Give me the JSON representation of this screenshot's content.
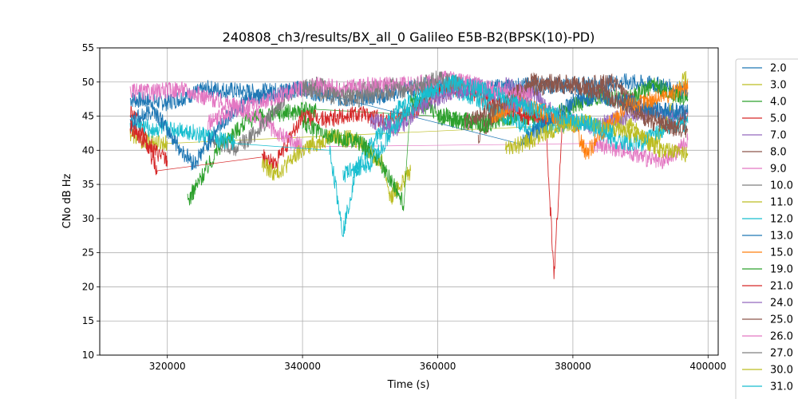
{
  "chart_data": {
    "type": "line",
    "title": "240808_ch3/results/BX_all_0 Galileo E5B-B2(BPSK(10)-PD)",
    "xlabel": "Time (s)",
    "ylabel": "CNo dB Hz",
    "xlim": [
      310000,
      401500
    ],
    "ylim": [
      10,
      55
    ],
    "grid": true,
    "legend_position": "right, outside plot",
    "x_ticks": [
      320000,
      340000,
      360000,
      380000,
      400000
    ],
    "x_tick_labels": [
      "320000",
      "340000",
      "360000",
      "380000",
      "400000"
    ],
    "y_ticks": [
      10,
      15,
      20,
      25,
      30,
      35,
      40,
      45,
      50,
      55
    ],
    "y_tick_labels": [
      "10",
      "15",
      "20",
      "25",
      "30",
      "35",
      "40",
      "45",
      "50",
      "55"
    ],
    "series": [
      {
        "name": "2.0",
        "color": "#1f77b4",
        "segments": [
          [
            [
              314500,
              47.5
            ],
            [
              320000,
              47.0
            ],
            [
              326000,
              49.0
            ],
            [
              333000,
              48.5
            ],
            [
              340000,
              49.0
            ],
            [
              346000,
              47.5
            ],
            [
              352000,
              48.0
            ],
            [
              358000,
              49.5
            ],
            [
              366000,
              49.0
            ],
            [
              374000,
              49.5
            ],
            [
              382000,
              49.5
            ],
            [
              388000,
              50.0
            ],
            [
              393000,
              49.5
            ],
            [
              397000,
              48.5
            ]
          ]
        ]
      },
      {
        "name": "3.0",
        "color": "#bcbd22",
        "segments": [
          [
            [
              314500,
              42.5
            ],
            [
              316000,
              41.5
            ],
            [
              320000,
              41.0
            ]
          ],
          [
            [
              386000,
              44.0
            ],
            [
              389000,
              43.5
            ],
            [
              392000,
              40.5
            ],
            [
              394000,
              44.5
            ],
            [
              396000,
              50.0
            ],
            [
              397000,
              50.5
            ]
          ]
        ]
      },
      {
        "name": "4.0",
        "color": "#2ca02c",
        "segments": [
          [
            [
              323000,
              32.5
            ],
            [
              325000,
              36.0
            ],
            [
              328000,
              41.0
            ],
            [
              332000,
              44.5
            ],
            [
              337000,
              45.5
            ],
            [
              342000,
              46.0
            ]
          ],
          [
            [
              360000,
              45.0
            ],
            [
              366000,
              44.0
            ],
            [
              372000,
              45.0
            ],
            [
              376000,
              44.5
            ],
            [
              380000,
              46.5
            ],
            [
              384000,
              48.0
            ],
            [
              388000,
              47.5
            ],
            [
              392000,
              49.5
            ],
            [
              397000,
              47.5
            ]
          ]
        ]
      },
      {
        "name": "5.0",
        "color": "#d62728",
        "segments": [
          [
            [
              314500,
              46.0
            ],
            [
              316000,
              43.5
            ],
            [
              318500,
              37.0
            ]
          ],
          [
            [
              334000,
              39.0
            ],
            [
              336000,
              38.0
            ],
            [
              340000,
              45.0
            ],
            [
              344000,
              44.5
            ],
            [
              348000,
              45.5
            ],
            [
              352000,
              44.5
            ],
            [
              356000,
              45.5
            ],
            [
              360000,
              48.5
            ],
            [
              364000,
              49.0
            ],
            [
              368000,
              47.0
            ],
            [
              372000,
              45.5
            ],
            [
              376000,
              44.0
            ],
            [
              377200,
              21.5
            ],
            [
              378500,
              44.5
            ]
          ]
        ]
      },
      {
        "name": "7.0",
        "color": "#9467bd",
        "segments": [
          [
            [
              370000,
              49.5
            ],
            [
              374000,
              48.5
            ],
            [
              378000,
              44.5
            ],
            [
              383000,
              43.5
            ],
            [
              388000,
              45.0
            ],
            [
              392000,
              46.0
            ],
            [
              395000,
              44.5
            ],
            [
              397000,
              45.5
            ]
          ]
        ]
      },
      {
        "name": "8.0",
        "color": "#8c564b",
        "segments": [
          [
            [
              366000,
              42.0
            ],
            [
              370000,
              47.0
            ],
            [
              374000,
              50.0
            ],
            [
              378000,
              50.0
            ],
            [
              382000,
              49.5
            ],
            [
              386000,
              50.0
            ],
            [
              388000,
              48.0
            ],
            [
              392000,
              45.0
            ],
            [
              395000,
              43.0
            ],
            [
              397000,
              45.5
            ]
          ]
        ]
      },
      {
        "name": "9.0",
        "color": "#e377c2",
        "segments": [
          [
            [
              314500,
              48.5
            ],
            [
              318000,
              48.5
            ],
            [
              322000,
              49.0
            ],
            [
              325000,
              48.0
            ],
            [
              330000,
              46.5
            ],
            [
              334000,
              44.5
            ],
            [
              337000,
              42.0
            ],
            [
              340000,
              40.5
            ]
          ],
          [
            [
              383000,
              41.0
            ],
            [
              388000,
              40.0
            ],
            [
              393000,
              38.0
            ],
            [
              395000,
              39.5
            ],
            [
              397000,
              41.5
            ]
          ]
        ]
      },
      {
        "name": "10.0",
        "color": "#7f7f7f",
        "segments": [
          [
            [
              326000,
              42.0
            ],
            [
              330000,
              40.0
            ],
            [
              334000,
              43.5
            ],
            [
              338000,
              48.5
            ],
            [
              342000,
              49.5
            ],
            [
              346000,
              48.5
            ],
            [
              350000,
              49.0
            ],
            [
              354000,
              49.5
            ]
          ]
        ]
      },
      {
        "name": "11.0",
        "color": "#bcbd22",
        "segments": [
          [
            [
              334000,
              38.0
            ],
            [
              336000,
              36.5
            ],
            [
              340000,
              40.0
            ],
            [
              344000,
              42.0
            ],
            [
              348000,
              41.5
            ],
            [
              352000,
              38.0
            ],
            [
              353000,
              33.0
            ],
            [
              356000,
              37.0
            ]
          ]
        ]
      },
      {
        "name": "12.0",
        "color": "#17becf",
        "segments": [
          [
            [
              314500,
              44.0
            ],
            [
              318000,
              43.0
            ],
            [
              322000,
              43.0
            ],
            [
              326000,
              42.0
            ],
            [
              330000,
              41.0
            ]
          ],
          [
            [
              344000,
              40.0
            ],
            [
              346000,
              28.0
            ],
            [
              348000,
              37.5
            ],
            [
              350000,
              40.5
            ],
            [
              354000,
              46.0
            ],
            [
              358000,
              48.5
            ],
            [
              362000,
              49.0
            ],
            [
              366000,
              47.5
            ],
            [
              370000,
              45.0
            ],
            [
              374000,
              43.0
            ],
            [
              378000,
              44.0
            ],
            [
              382000,
              44.0
            ],
            [
              386000,
              41.5
            ],
            [
              390000,
              41.0
            ],
            [
              394000,
              43.5
            ],
            [
              397000,
              44.0
            ]
          ]
        ]
      },
      {
        "name": "13.0",
        "color": "#1f77b4",
        "segments": [
          [
            [
              314500,
              44.0
            ],
            [
              318000,
              46.0
            ],
            [
              322000,
              40.0
            ],
            [
              324000,
              38.0
            ],
            [
              328000,
              44.0
            ],
            [
              332000,
              47.5
            ],
            [
              336000,
              48.5
            ],
            [
              340000,
              49.0
            ]
          ],
          [
            [
              372000,
              41.0
            ],
            [
              376000,
              44.0
            ],
            [
              380000,
              47.0
            ],
            [
              384000,
              48.0
            ],
            [
              388000,
              47.0
            ],
            [
              392000,
              46.0
            ],
            [
              397000,
              45.5
            ]
          ]
        ]
      },
      {
        "name": "15.0",
        "color": "#ff7f0e",
        "segments": [
          [
            [
              368000,
              45.0
            ],
            [
              372000,
              47.0
            ],
            [
              376000,
              45.5
            ],
            [
              380000,
              44.0
            ],
            [
              382000,
              39.5
            ],
            [
              385000,
              43.5
            ],
            [
              388000,
              46.5
            ],
            [
              392000,
              47.5
            ],
            [
              397000,
              49.0
            ]
          ]
        ]
      },
      {
        "name": "19.0",
        "color": "#2ca02c",
        "segments": [
          [
            [
              340000,
              44.0
            ],
            [
              344000,
              42.0
            ],
            [
              348000,
              41.5
            ],
            [
              351000,
              39.0
            ],
            [
              353500,
              35.0
            ],
            [
              355000,
              32.0
            ]
          ],
          [
            [
              356000,
              47.5
            ],
            [
              360000,
              45.5
            ],
            [
              364000,
              44.0
            ],
            [
              368000,
              43.5
            ]
          ]
        ]
      },
      {
        "name": "21.0",
        "color": "#d62728",
        "segments": [
          [
            [
              314500,
              43.5
            ],
            [
              316000,
              42.0
            ],
            [
              318000,
              40.0
            ],
            [
              320000,
              38.5
            ]
          ]
        ]
      },
      {
        "name": "24.0",
        "color": "#9467bd",
        "segments": [
          [
            [
              350000,
              44.5
            ],
            [
              354000,
              43.0
            ],
            [
              358000,
              46.5
            ],
            [
              362000,
              48.5
            ],
            [
              366000,
              49.5
            ],
            [
              370000,
              47.0
            ],
            [
              374000,
              46.5
            ]
          ]
        ]
      },
      {
        "name": "25.0",
        "color": "#8c564b",
        "segments": [
          [
            [
              364000,
              44.0
            ],
            [
              368000,
              46.0
            ],
            [
              372000,
              48.5
            ],
            [
              376000,
              49.5
            ],
            [
              380000,
              49.5
            ],
            [
              384000,
              48.5
            ],
            [
              388000,
              46.5
            ],
            [
              392000,
              44.0
            ],
            [
              397000,
              43.0
            ]
          ]
        ]
      },
      {
        "name": "26.0",
        "color": "#e377c2",
        "segments": [
          [
            [
              326000,
              44.0
            ],
            [
              330000,
              46.0
            ],
            [
              334000,
              47.0
            ],
            [
              338000,
              48.5
            ],
            [
              342000,
              49.5
            ],
            [
              346000,
              49.0
            ],
            [
              350000,
              49.5
            ],
            [
              354000,
              49.5
            ],
            [
              358000,
              50.0
            ],
            [
              362000,
              50.5
            ],
            [
              366000,
              49.5
            ],
            [
              370000,
              48.5
            ],
            [
              374000,
              48.0
            ]
          ]
        ]
      },
      {
        "name": "27.0",
        "color": "#7f7f7f",
        "segments": [
          [
            [
              340000,
              49.5
            ],
            [
              344000,
              48.0
            ],
            [
              348000,
              47.5
            ],
            [
              352000,
              48.5
            ],
            [
              356000,
              49.0
            ],
            [
              360000,
              50.5
            ],
            [
              364000,
              49.5
            ]
          ]
        ]
      },
      {
        "name": "30.0",
        "color": "#bcbd22",
        "segments": [
          [
            [
              370000,
              40.0
            ],
            [
              374000,
              41.5
            ],
            [
              378000,
              43.5
            ],
            [
              382000,
              44.0
            ],
            [
              386000,
              43.0
            ],
            [
              390000,
              42.0
            ],
            [
              393000,
              40.0
            ],
            [
              397000,
              39.5
            ]
          ]
        ]
      },
      {
        "name": "31.0",
        "color": "#17becf",
        "segments": [
          [
            [
              346000,
              36.5
            ],
            [
              350000,
              38.0
            ],
            [
              354000,
              44.0
            ],
            [
              358000,
              48.0
            ],
            [
              362000,
              50.0
            ],
            [
              366000,
              49.0
            ],
            [
              370000,
              47.5
            ],
            [
              374000,
              46.0
            ],
            [
              378000,
              45.0
            ],
            [
              382000,
              44.0
            ],
            [
              386000,
              42.5
            ]
          ]
        ]
      }
    ]
  }
}
